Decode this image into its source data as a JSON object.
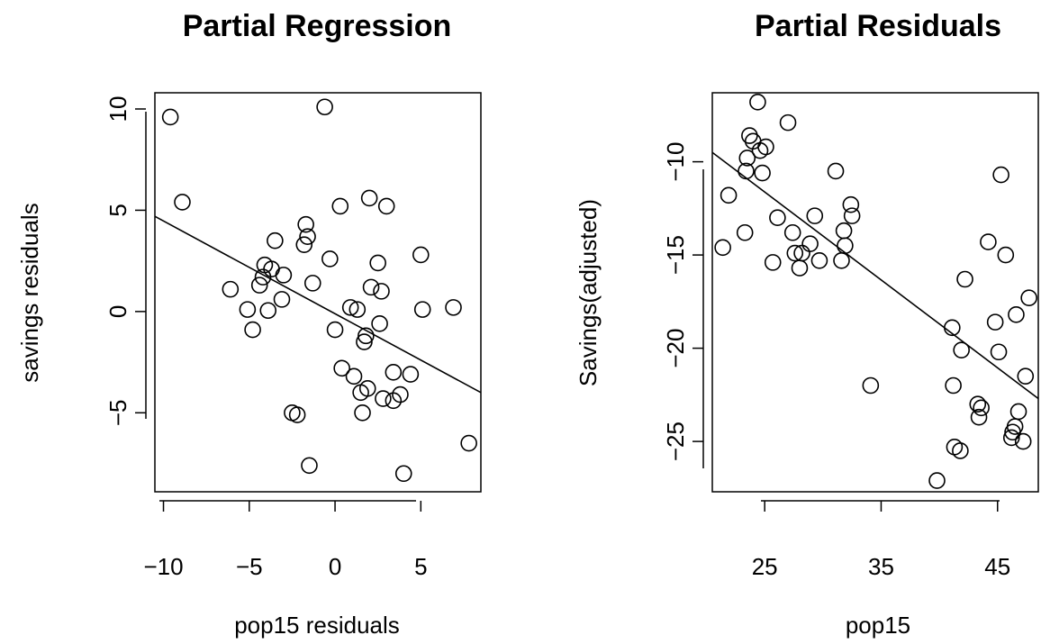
{
  "chart_data": [
    {
      "type": "scatter",
      "title": "Partial Regression",
      "xlabel": "pop15 residuals",
      "ylabel": "savings residuals",
      "xlim": [
        -10.5,
        8.5
      ],
      "ylim": [
        -8.9,
        10.8
      ],
      "xticks": [
        -10,
        -5,
        0,
        5
      ],
      "xtick_labels": [
        "−10",
        "−5",
        "0",
        "5"
      ],
      "yticks": [
        -5,
        0,
        5,
        10
      ],
      "ytick_labels": [
        "−5",
        "0",
        "5",
        "10"
      ],
      "grid": false,
      "fit_line": {
        "x": [
          -10.5,
          8.5
        ],
        "y": [
          4.7,
          -4.0
        ]
      },
      "points": {
        "x": [
          -9.6,
          -8.9,
          -6.1,
          -5.1,
          -4.8,
          -4.4,
          -4.2,
          -4.1,
          -3.9,
          -3.7,
          -3.5,
          -3.1,
          -3.0,
          -2.5,
          -2.2,
          -1.8,
          -1.7,
          -1.6,
          -1.5,
          -1.3,
          -0.6,
          -0.3,
          0.0,
          0.3,
          0.4,
          0.9,
          1.1,
          1.3,
          1.5,
          1.6,
          1.7,
          1.8,
          1.9,
          2.0,
          2.1,
          2.5,
          2.6,
          2.7,
          2.8,
          3.0,
          3.4,
          3.4,
          3.8,
          4.0,
          4.4,
          5.0,
          5.1,
          6.9,
          7.8
        ],
        "y": [
          9.6,
          5.4,
          1.1,
          0.1,
          -0.9,
          1.3,
          1.7,
          2.3,
          0.05,
          2.1,
          3.5,
          0.6,
          1.8,
          -5.0,
          -5.1,
          3.3,
          4.3,
          3.7,
          -7.6,
          1.4,
          10.1,
          2.6,
          -0.9,
          5.2,
          -2.8,
          0.2,
          -3.2,
          0.1,
          -4.0,
          -5.0,
          -1.5,
          -1.2,
          -3.8,
          5.6,
          1.2,
          2.4,
          -0.6,
          1.0,
          -4.3,
          5.2,
          -3.0,
          -4.4,
          -4.1,
          -8.0,
          -3.1,
          2.8,
          0.1,
          0.2,
          -6.5
        ]
      }
    },
    {
      "type": "scatter",
      "title": "Partial Residuals",
      "xlabel": "pop15",
      "ylabel": "Savings(adjusted)",
      "xlim": [
        20.5,
        48.5
      ],
      "ylim": [
        -27.7,
        -6.3
      ],
      "xticks": [
        25,
        35,
        45
      ],
      "xtick_labels": [
        "25",
        "35",
        "45"
      ],
      "yticks": [
        -25,
        -20,
        -15,
        -10
      ],
      "ytick_labels": [
        "−25",
        "−20",
        "−15",
        "−10"
      ],
      "grid": false,
      "fit_line": {
        "x": [
          20.5,
          48.5
        ],
        "y": [
          -9.5,
          -22.7
        ]
      },
      "points": {
        "x": [
          21.4,
          21.9,
          23.3,
          23.4,
          23.5,
          23.7,
          24.0,
          24.4,
          24.6,
          24.8,
          25.1,
          25.7,
          26.1,
          27.0,
          27.4,
          27.6,
          28.0,
          28.2,
          28.9,
          29.3,
          29.7,
          31.1,
          31.6,
          31.8,
          31.9,
          32.4,
          32.5,
          34.1,
          39.8,
          41.1,
          41.2,
          41.3,
          41.8,
          41.9,
          42.2,
          43.3,
          43.4,
          43.6,
          44.2,
          44.8,
          45.1,
          45.3,
          45.7,
          46.2,
          46.3,
          46.5,
          46.6,
          46.8,
          47.2,
          47.4,
          47.7
        ],
        "y": [
          -14.6,
          -11.8,
          -13.8,
          -10.5,
          -9.8,
          -8.6,
          -8.9,
          -6.8,
          -9.4,
          -10.6,
          -9.2,
          -15.4,
          -13.0,
          -7.9,
          -13.8,
          -14.9,
          -15.7,
          -14.9,
          -14.4,
          -12.9,
          -15.3,
          -10.5,
          -15.3,
          -13.7,
          -14.5,
          -12.3,
          -12.9,
          -22.0,
          -27.1,
          -18.9,
          -22.0,
          -25.3,
          -25.5,
          -20.1,
          -16.3,
          -23.0,
          -23.7,
          -23.2,
          -14.3,
          -18.6,
          -20.2,
          -10.7,
          -15.0,
          -24.8,
          -24.5,
          -24.2,
          -18.2,
          -23.4,
          -25.0,
          -21.5,
          -17.3
        ]
      }
    }
  ]
}
